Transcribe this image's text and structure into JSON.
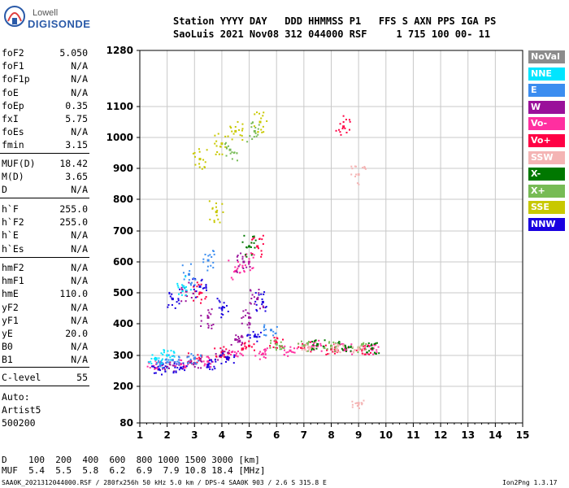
{
  "logo": {
    "top": "Lowell",
    "bottom": "DIGISONDE"
  },
  "header": {
    "line1": "Station YYYY DAY   DDD HHMMSS P1   FFS S AXN PPS IGA PS",
    "line2": "SaoLuis 2021 Nov08 312 044000 RSF     1 715 100 00- 11"
  },
  "params_group1": [
    {
      "k": "foF2",
      "v": "5.050"
    },
    {
      "k": "foF1",
      "v": "N/A"
    },
    {
      "k": "foF1p",
      "v": "N/A"
    },
    {
      "k": "foE",
      "v": "N/A"
    },
    {
      "k": "foEp",
      "v": "0.35"
    },
    {
      "k": "fxI",
      "v": "5.75"
    },
    {
      "k": "foEs",
      "v": "N/A"
    },
    {
      "k": "fmin",
      "v": "3.15"
    }
  ],
  "params_group2": [
    {
      "k": "MUF(D)",
      "v": "18.42"
    },
    {
      "k": "M(D)",
      "v": "3.65"
    },
    {
      "k": "D",
      "v": "N/A"
    }
  ],
  "params_group3": [
    {
      "k": "h`F",
      "v": "255.0"
    },
    {
      "k": "h`F2",
      "v": "255.0"
    },
    {
      "k": "h`E",
      "v": "N/A"
    },
    {
      "k": "h`Es",
      "v": "N/A"
    }
  ],
  "params_group4": [
    {
      "k": "hmF2",
      "v": "N/A"
    },
    {
      "k": "hmF1",
      "v": "N/A"
    },
    {
      "k": "hmE",
      "v": "110.0"
    },
    {
      "k": "yF2",
      "v": "N/A"
    },
    {
      "k": "yF1",
      "v": "N/A"
    },
    {
      "k": "yE",
      "v": "20.0"
    },
    {
      "k": "B0",
      "v": "N/A"
    },
    {
      "k": "B1",
      "v": "N/A"
    }
  ],
  "c_level": {
    "k": "C-level",
    "v": "55"
  },
  "auto": [
    "Auto:",
    "Artist5",
    "500200"
  ],
  "legend": [
    {
      "label": "NoVal",
      "color": "#8c8c8c"
    },
    {
      "label": "NNE",
      "color": "#00e5ff"
    },
    {
      "label": "E",
      "color": "#3b8df0"
    },
    {
      "label": "W",
      "color": "#9a109a"
    },
    {
      "label": "Vo-",
      "color": "#ff2fa0"
    },
    {
      "label": "Vo+",
      "color": "#ff0044"
    },
    {
      "label": "SSW",
      "color": "#f4b4b4"
    },
    {
      "label": "X-",
      "color": "#007800"
    },
    {
      "label": "X+",
      "color": "#77bb55"
    },
    {
      "label": "SSE",
      "color": "#c8c800"
    },
    {
      "label": "NNW",
      "color": "#1a00e0"
    }
  ],
  "bottom_d": "D    100  200  400  600  800 1000 1500 3000 [km]",
  "bottom_muf": "MUF  5.4  5.5  5.8  6.2  6.9  7.9 10.8 18.4 [MHz]",
  "footer_left": "SAA0K_2021312044000.RSF / 280fx256h 50 kHz 5.0 km / DPS-4 SAA0K 903 / 2.6 S 315.8 E",
  "footer_right": "Ion2Png 1.3.17",
  "chart_data": {
    "type": "scatter",
    "title": "",
    "xlabel": "",
    "ylabel": "",
    "xlim": [
      1,
      15
    ],
    "ylim": [
      80,
      1280
    ],
    "x_ticks": [
      1,
      2,
      3,
      4,
      5,
      6,
      7,
      8,
      9,
      10,
      11,
      12,
      13,
      14,
      15
    ],
    "y_ticks": [
      80,
      200,
      300,
      400,
      500,
      600,
      700,
      800,
      900,
      1000,
      1100,
      1280
    ],
    "y_scale": "nonlinear",
    "grid": true,
    "series": [
      {
        "name": "Vo-",
        "points": [
          [
            1.5,
            265
          ],
          [
            2.5,
            272
          ],
          [
            3.5,
            280
          ],
          [
            4.5,
            300
          ],
          [
            5.5,
            305
          ],
          [
            6.5,
            315
          ],
          [
            7.5,
            330
          ],
          [
            8.5,
            320
          ],
          [
            9.5,
            318
          ],
          [
            5.0,
            600
          ],
          [
            4.5,
            570
          ]
        ]
      },
      {
        "name": "Vo+",
        "points": [
          [
            3.0,
            290
          ],
          [
            4.0,
            310
          ],
          [
            5.0,
            330
          ],
          [
            6.0,
            340
          ],
          [
            7.0,
            325
          ],
          [
            8.0,
            320
          ],
          [
            9.2,
            320
          ],
          [
            3.2,
            500
          ],
          [
            5.3,
            650
          ],
          [
            8.45,
            1035
          ]
        ]
      },
      {
        "name": "W",
        "points": [
          [
            2.0,
            262
          ],
          [
            3.0,
            275
          ],
          [
            4.0,
            300
          ],
          [
            4.5,
            350
          ],
          [
            5.0,
            420
          ],
          [
            5.3,
            480
          ],
          [
            3.5,
            420
          ],
          [
            4.8,
            600
          ],
          [
            2.7,
            505
          ]
        ]
      },
      {
        "name": "NNW",
        "points": [
          [
            1.7,
            255
          ],
          [
            2.5,
            260
          ],
          [
            3.5,
            270
          ],
          [
            4.2,
            290
          ],
          [
            5.2,
            360
          ],
          [
            4.0,
            450
          ],
          [
            3.2,
            520
          ],
          [
            5.5,
            470
          ],
          [
            2.2,
            480
          ]
        ]
      },
      {
        "name": "E",
        "points": [
          [
            1.8,
            275
          ],
          [
            2.2,
            285
          ],
          [
            3.0,
            290
          ],
          [
            2.8,
            560
          ],
          [
            3.5,
            605
          ],
          [
            5.8,
            380
          ]
        ]
      },
      {
        "name": "NNE",
        "points": [
          [
            1.6,
            290
          ],
          [
            2.0,
            300
          ],
          [
            2.6,
            520
          ]
        ]
      },
      {
        "name": "X+",
        "points": [
          [
            6.0,
            335
          ],
          [
            7.0,
            330
          ],
          [
            8.0,
            330
          ],
          [
            9.0,
            325
          ],
          [
            5.2,
            1020
          ],
          [
            4.3,
            960
          ]
        ]
      },
      {
        "name": "X-",
        "points": [
          [
            7.5,
            335
          ],
          [
            8.5,
            330
          ],
          [
            9.5,
            322
          ],
          [
            5.0,
            650
          ]
        ]
      },
      {
        "name": "SSE",
        "points": [
          [
            3.2,
            930
          ],
          [
            4.0,
            980
          ],
          [
            4.5,
            1020
          ],
          [
            5.4,
            1050
          ],
          [
            3.8,
            760
          ]
        ]
      },
      {
        "name": "SSW",
        "points": [
          [
            7.2,
            325
          ],
          [
            8.2,
            320
          ],
          [
            9.0,
            318
          ],
          [
            9.0,
            880
          ],
          [
            9.0,
            145
          ]
        ]
      }
    ]
  }
}
